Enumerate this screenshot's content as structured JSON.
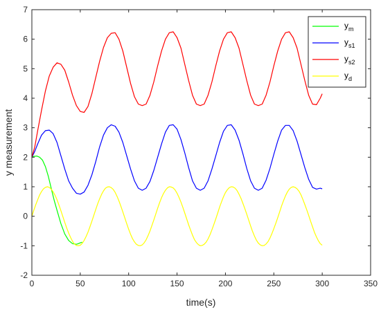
{
  "chart_data": {
    "type": "line",
    "xlabel": "time(s)",
    "ylabel": "y measurement",
    "xlim": [
      0,
      350
    ],
    "ylim": [
      -2,
      7
    ],
    "xticks": [
      0,
      50,
      100,
      150,
      200,
      250,
      300,
      350
    ],
    "yticks": [
      -2,
      -1,
      0,
      1,
      2,
      3,
      4,
      5,
      6,
      7
    ],
    "grid": false,
    "legend_position": "top-right",
    "series": [
      {
        "name": "y_m",
        "legend_main": "y",
        "legend_sub": "m",
        "color": "#00ff00",
        "x": [
          0,
          2,
          5,
          8,
          11,
          14,
          17,
          20,
          23,
          26,
          30,
          34,
          38,
          42,
          46,
          48,
          50,
          52
        ],
        "values": [
          2.0,
          2.03,
          2.04,
          2.0,
          1.9,
          1.68,
          1.35,
          0.95,
          0.55,
          0.2,
          -0.25,
          -0.6,
          -0.82,
          -0.93,
          -0.95,
          -0.93,
          -0.9,
          -0.88
        ]
      },
      {
        "name": "y_s1",
        "legend_main": "y",
        "legend_sub": "s1",
        "color": "#0000ff",
        "x": [
          0,
          3,
          6,
          10,
          14,
          18,
          22,
          26,
          30,
          34,
          38,
          42,
          46,
          50,
          54,
          58,
          62,
          66,
          70,
          74,
          78,
          82,
          86,
          90,
          94,
          98,
          102,
          106,
          110,
          114,
          118,
          122,
          126,
          130,
          134,
          138,
          142,
          146,
          150,
          154,
          158,
          162,
          166,
          170,
          174,
          178,
          182,
          186,
          190,
          194,
          198,
          202,
          206,
          210,
          214,
          218,
          222,
          226,
          230,
          234,
          238,
          242,
          246,
          250,
          254,
          258,
          262,
          266,
          270,
          274,
          278,
          282,
          286,
          290,
          294,
          298,
          300
        ],
        "values": [
          2.0,
          2.2,
          2.45,
          2.75,
          2.9,
          2.92,
          2.8,
          2.5,
          2.05,
          1.6,
          1.2,
          0.95,
          0.78,
          0.75,
          0.82,
          1.05,
          1.4,
          1.85,
          2.35,
          2.75,
          3.0,
          3.1,
          3.05,
          2.85,
          2.5,
          2.05,
          1.6,
          1.2,
          0.95,
          0.88,
          0.95,
          1.18,
          1.55,
          2.0,
          2.45,
          2.85,
          3.08,
          3.1,
          2.95,
          2.6,
          2.15,
          1.65,
          1.2,
          0.95,
          0.88,
          0.95,
          1.2,
          1.6,
          2.05,
          2.5,
          2.88,
          3.08,
          3.1,
          2.92,
          2.58,
          2.12,
          1.62,
          1.2,
          0.95,
          0.88,
          0.95,
          1.22,
          1.62,
          2.1,
          2.55,
          2.92,
          3.08,
          3.08,
          2.9,
          2.55,
          2.1,
          1.65,
          1.25,
          0.98,
          0.92,
          0.95,
          0.93
        ]
      },
      {
        "name": "y_s2",
        "legend_main": "y",
        "legend_sub": "s2",
        "color": "#ff0000",
        "x": [
          0,
          3,
          6,
          10,
          14,
          18,
          22,
          26,
          30,
          34,
          38,
          42,
          46,
          50,
          54,
          58,
          62,
          66,
          70,
          74,
          78,
          82,
          86,
          90,
          94,
          98,
          102,
          106,
          110,
          114,
          118,
          122,
          126,
          130,
          134,
          138,
          142,
          146,
          150,
          154,
          158,
          162,
          166,
          170,
          174,
          178,
          182,
          186,
          190,
          194,
          198,
          202,
          206,
          210,
          214,
          218,
          222,
          226,
          230,
          234,
          238,
          242,
          246,
          250,
          254,
          258,
          262,
          266,
          270,
          274,
          278,
          282,
          286,
          290,
          294,
          298,
          300
        ],
        "values": [
          2.0,
          2.35,
          2.9,
          3.6,
          4.25,
          4.75,
          5.05,
          5.2,
          5.15,
          4.95,
          4.55,
          4.1,
          3.75,
          3.55,
          3.52,
          3.72,
          4.15,
          4.7,
          5.25,
          5.72,
          6.05,
          6.2,
          6.22,
          6.0,
          5.6,
          5.05,
          4.5,
          4.05,
          3.8,
          3.75,
          3.8,
          4.1,
          4.55,
          5.1,
          5.6,
          6.0,
          6.22,
          6.25,
          6.05,
          5.7,
          5.15,
          4.6,
          4.1,
          3.8,
          3.75,
          3.8,
          4.1,
          4.55,
          5.1,
          5.6,
          6.0,
          6.22,
          6.25,
          6.05,
          5.7,
          5.15,
          4.6,
          4.1,
          3.8,
          3.75,
          3.8,
          4.1,
          4.55,
          5.1,
          5.6,
          6.0,
          6.22,
          6.25,
          6.05,
          5.7,
          5.15,
          4.6,
          4.1,
          3.8,
          3.78,
          4.0,
          4.15
        ]
      },
      {
        "name": "y_d",
        "legend_main": "y",
        "legend_sub": "d",
        "color": "#ffff00",
        "x": [
          0,
          2,
          4,
          6,
          8,
          10,
          12,
          14,
          16,
          18,
          20,
          22,
          24,
          26,
          28,
          30,
          32,
          34,
          36,
          38,
          40,
          42,
          44,
          46,
          48,
          50,
          52,
          54,
          56,
          58,
          60,
          62,
          64,
          66,
          68,
          70,
          72,
          74,
          76,
          78,
          80,
          82,
          84,
          86,
          88,
          90,
          92,
          94,
          96,
          98,
          100,
          102,
          104,
          106,
          108,
          110,
          112,
          114,
          116,
          118,
          120,
          122,
          124,
          126,
          128,
          130,
          132,
          134,
          136,
          138,
          140,
          142,
          144,
          146,
          148,
          150,
          152,
          154,
          156,
          158,
          160,
          162,
          164,
          166,
          168,
          170,
          172,
          174,
          176,
          178,
          180,
          182,
          184,
          186,
          188,
          190,
          192,
          194,
          196,
          198,
          200,
          202,
          204,
          206,
          208,
          210,
          212,
          214,
          216,
          218,
          220,
          222,
          224,
          226,
          228,
          230,
          232,
          234,
          236,
          238,
          240,
          242,
          244,
          246,
          248,
          250,
          252,
          254,
          256,
          258,
          260,
          262,
          264,
          266,
          268,
          270,
          272,
          274,
          276,
          278,
          280,
          282,
          284,
          286,
          288,
          290,
          292,
          294,
          296,
          298,
          300
        ],
        "values": [
          0,
          0.2,
          0.39,
          0.56,
          0.72,
          0.84,
          0.93,
          0.98,
          1.0,
          0.98,
          0.92,
          0.83,
          0.71,
          0.56,
          0.38,
          0.19,
          -0.01,
          -0.21,
          -0.4,
          -0.57,
          -0.72,
          -0.85,
          -0.94,
          -0.99,
          -1.0,
          -0.98,
          -0.92,
          -0.82,
          -0.69,
          -0.54,
          -0.36,
          -0.17,
          0.03,
          0.23,
          0.42,
          0.59,
          0.74,
          0.86,
          0.95,
          0.99,
          1.0,
          0.97,
          0.91,
          0.81,
          0.68,
          0.52,
          0.34,
          0.15,
          -0.05,
          -0.25,
          -0.44,
          -0.61,
          -0.76,
          -0.87,
          -0.95,
          -0.99,
          -1.0,
          -0.97,
          -0.9,
          -0.8,
          -0.66,
          -0.5,
          -0.32,
          -0.13,
          0.07,
          0.27,
          0.46,
          0.63,
          0.77,
          0.88,
          0.96,
          1.0,
          0.99,
          0.96,
          0.89,
          0.78,
          0.64,
          0.48,
          0.3,
          0.11,
          -0.09,
          -0.29,
          -0.47,
          -0.64,
          -0.79,
          -0.89,
          -0.96,
          -1.0,
          -0.99,
          -0.95,
          -0.88,
          -0.77,
          -0.63,
          -0.46,
          -0.28,
          -0.09,
          0.11,
          0.31,
          0.49,
          0.66,
          0.8,
          0.9,
          0.97,
          1.0,
          0.99,
          0.95,
          0.87,
          0.75,
          0.61,
          0.44,
          0.26,
          0.07,
          -0.13,
          -0.33,
          -0.51,
          -0.67,
          -0.81,
          -0.91,
          -0.97,
          -1.0,
          -0.99,
          -0.94,
          -0.86,
          -0.74,
          -0.59,
          -0.42,
          -0.24,
          -0.05,
          0.15,
          0.35,
          0.53,
          0.69,
          0.82,
          0.92,
          0.98,
          1.0,
          0.98,
          0.93,
          0.85,
          0.73,
          0.57,
          0.4,
          0.22,
          0.03,
          -0.17,
          -0.36,
          -0.55,
          -0.7,
          -0.83,
          -0.93,
          -0.98
        ]
      }
    ]
  }
}
